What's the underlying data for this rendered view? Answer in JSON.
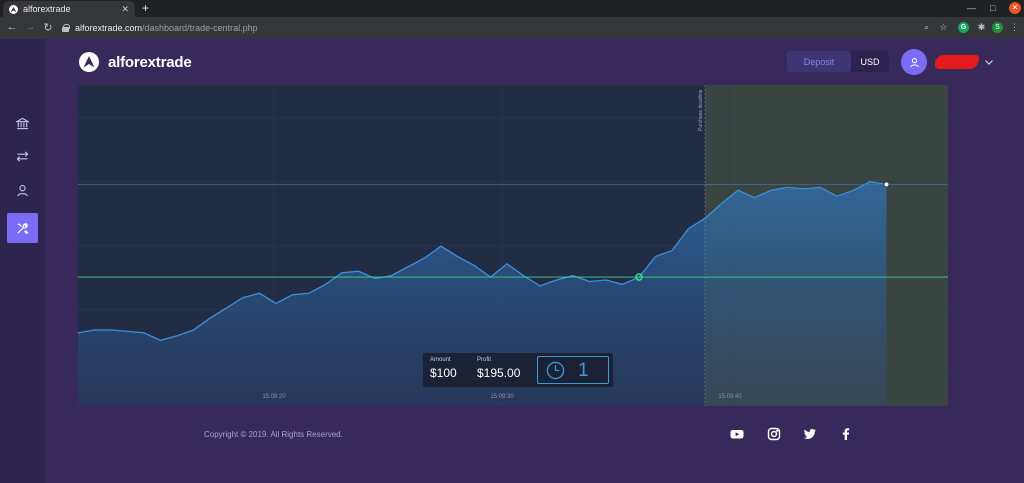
{
  "browser": {
    "tab_title": "alforextrade",
    "tab_close": "✕",
    "new_tab": "+",
    "url_domain": "alforextrade.com",
    "url_path": "/dashboard/trade-central.php",
    "ext_avatar_letter": "S"
  },
  "header": {
    "logo_text": "alforextrade",
    "deposit_label": "Deposit",
    "currency": "USD",
    "user_name": "hidden"
  },
  "sidebar": {
    "items": [
      {
        "name": "sidebar-item-markets",
        "icon": "bank-icon",
        "active": false
      },
      {
        "name": "sidebar-item-transactions",
        "icon": "swap-arrows-icon",
        "active": false
      },
      {
        "name": "sidebar-item-profile",
        "icon": "user-icon",
        "active": false
      },
      {
        "name": "sidebar-item-trade-tools",
        "icon": "tools-icon",
        "active": true
      }
    ]
  },
  "chart_data": {
    "type": "area",
    "x_ticks": [
      "15:09:20",
      "15:09:30",
      "15:09:40"
    ],
    "y": [
      3.2,
      3.3,
      3.3,
      3.25,
      3.2,
      2.95,
      3.1,
      3.3,
      3.7,
      4.05,
      4.4,
      4.55,
      4.2,
      4.5,
      4.55,
      4.85,
      5.25,
      5.3,
      5.05,
      5.15,
      5.45,
      5.75,
      6.15,
      5.8,
      5.5,
      5.1,
      5.55,
      5.15,
      4.8,
      5.0,
      5.15,
      4.95,
      5.0,
      4.85,
      5.1,
      5.8,
      6.0,
      6.75,
      7.1,
      7.6,
      8.05,
      7.8,
      8.05,
      8.15,
      8.1,
      8.15,
      7.85,
      8.05,
      8.35,
      8.25
    ],
    "entry_level": 5.1,
    "entry_index": 34,
    "current_index": 49,
    "deadline_index": 38,
    "deadline_label": "Purchase deadline",
    "line_color": "#3f8fd8",
    "entry_line_color": "#39d98a",
    "grid": true
  },
  "trade": {
    "amount_label": "Amount",
    "amount_value": "$100",
    "profit_label": "Profit",
    "profit_value": "$195.00",
    "timer_value": "1"
  },
  "footer": {
    "copyright": "Copyright © 2019. All Rights Reserved.",
    "social": [
      "youtube-icon",
      "instagram-icon",
      "twitter-icon",
      "facebook-icon"
    ]
  }
}
